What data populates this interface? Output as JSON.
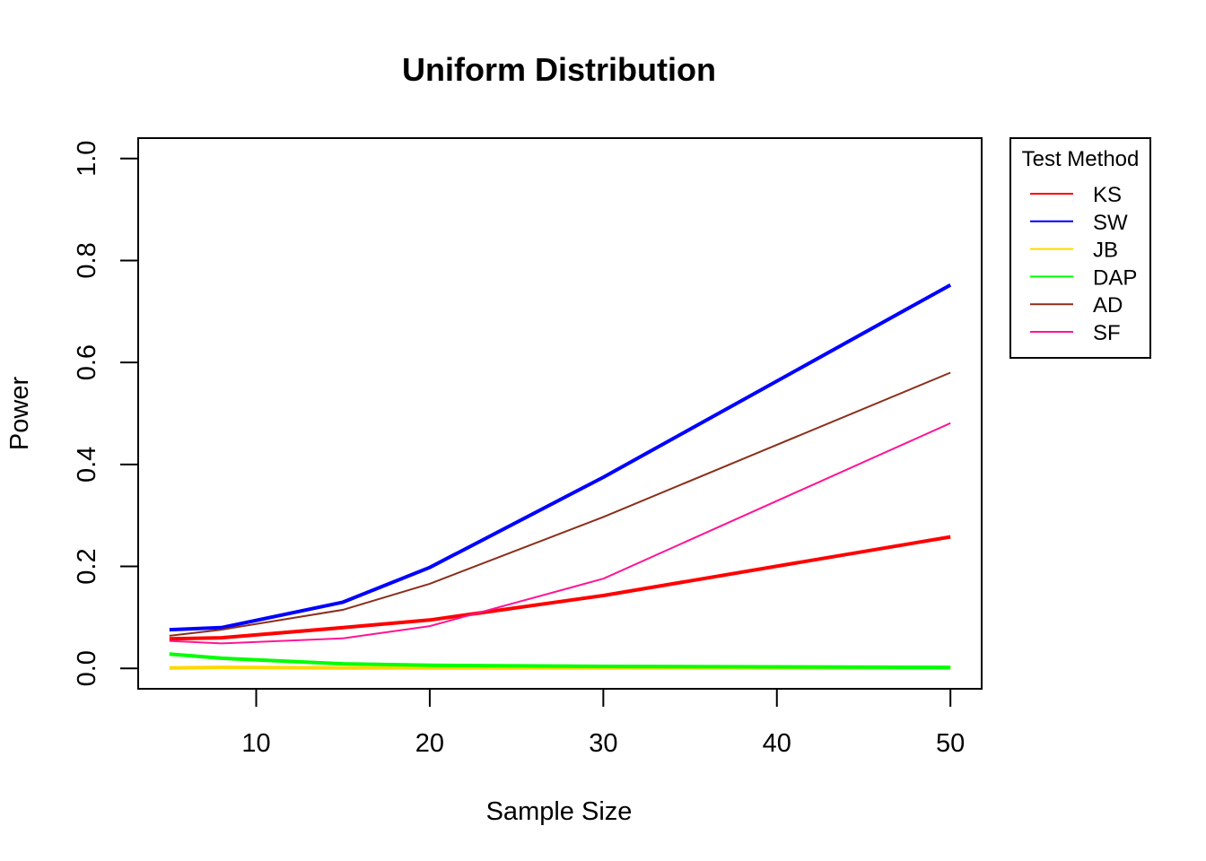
{
  "chart_data": {
    "type": "line",
    "title": "Uniform Distribution",
    "xlabel": "Sample Size",
    "ylabel": "Power",
    "xlim": [
      3.2,
      51.8
    ],
    "ylim": [
      -0.04,
      1.04
    ],
    "x_ticks": [
      10,
      20,
      30,
      40,
      50
    ],
    "y_ticks": [
      0.0,
      0.2,
      0.4,
      0.6,
      0.8,
      1.0
    ],
    "x_tick_labels": [
      "10",
      "20",
      "30",
      "40",
      "50"
    ],
    "y_tick_labels": [
      "0.0",
      "0.2",
      "0.4",
      "0.6",
      "0.8",
      "1.0"
    ],
    "grid": false,
    "legend_title": "Test Method",
    "legend_position": "outside-right-top",
    "x": [
      5,
      8,
      15,
      20,
      30,
      50
    ],
    "series": [
      {
        "name": "KS",
        "color": "#ff0000",
        "width": "thick",
        "values": [
          0.058,
          0.06,
          0.08,
          0.095,
          0.143,
          0.258
        ]
      },
      {
        "name": "SW",
        "color": "#0000ff",
        "width": "thick",
        "values": [
          0.076,
          0.08,
          0.13,
          0.198,
          0.375,
          0.752
        ]
      },
      {
        "name": "JB",
        "color": "#ffd700",
        "width": "thick",
        "values": [
          0.001,
          0.002,
          0.001,
          0.001,
          0.001,
          0.001
        ]
      },
      {
        "name": "DAP",
        "color": "#00ff00",
        "width": "thick",
        "values": [
          0.028,
          0.02,
          0.009,
          0.006,
          0.004,
          0.002
        ]
      },
      {
        "name": "AD",
        "color": "#8b2e1a",
        "width": "thin",
        "values": [
          0.064,
          0.076,
          0.115,
          0.166,
          0.297,
          0.58
        ]
      },
      {
        "name": "SF",
        "color": "#ff1493",
        "width": "thin",
        "values": [
          0.054,
          0.049,
          0.059,
          0.083,
          0.176,
          0.481
        ]
      }
    ]
  }
}
